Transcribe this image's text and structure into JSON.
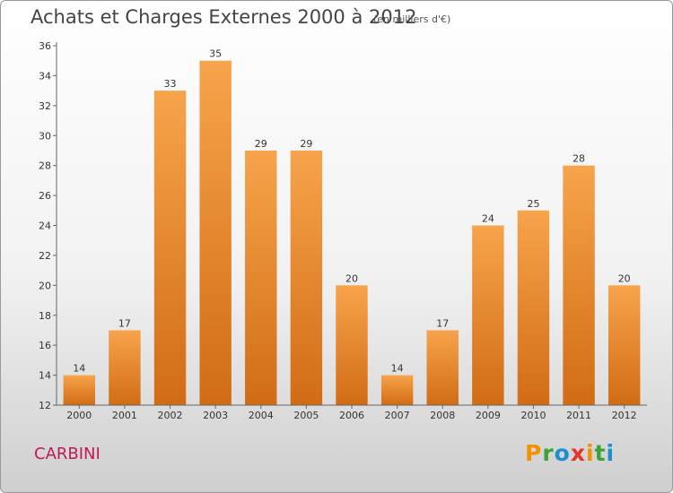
{
  "header": {
    "title": "Achats et Charges Externes 2000 à 2012",
    "subtitle": "(en milliers d'€)"
  },
  "commune": "CARBINI",
  "logo": {
    "text": "Proxiti"
  },
  "colors": {
    "bar_top": "#f7a44c",
    "bar_bottom": "#d16c14",
    "commune": "#c2185b",
    "logo": [
      "#f39200",
      "#3aa335",
      "#1f8ecd",
      "#e6332a",
      "#f39200",
      "#3aa335",
      "#1f8ecd"
    ]
  },
  "chart_data": {
    "type": "bar",
    "categories": [
      "2000",
      "2001",
      "2002",
      "2003",
      "2004",
      "2005",
      "2006",
      "2007",
      "2008",
      "2009",
      "2010",
      "2011",
      "2012"
    ],
    "values": [
      14,
      17,
      33,
      35,
      29,
      29,
      20,
      14,
      17,
      24,
      25,
      28,
      20
    ],
    "ylim": [
      12,
      36
    ],
    "yticks": [
      12,
      14,
      16,
      18,
      20,
      22,
      24,
      26,
      28,
      30,
      32,
      34,
      36
    ],
    "title": "Achats et Charges Externes 2000 à 2012",
    "ylabel": "",
    "xlabel": "",
    "grid": false
  }
}
